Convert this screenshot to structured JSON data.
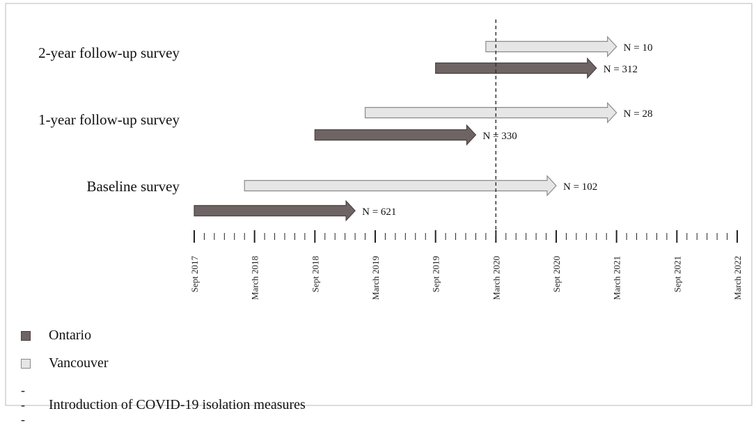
{
  "chart_data": {
    "type": "timeline",
    "x_ticks": [
      "Sept 2017",
      "March 2018",
      "Sept 2018",
      "March 2019",
      "Sept 2019",
      "March 2020",
      "Sept 2020",
      "March 2021",
      "Sept 2021",
      "March 2022"
    ],
    "x_unit": "month",
    "x_range": [
      "2017-09",
      "2022-03"
    ],
    "marker": {
      "date": "2020-03",
      "style": "dashed",
      "legend": "Introduction of COVID-19 isolation measures"
    },
    "rows": [
      {
        "label": "2-year follow-up survey",
        "bars": [
          {
            "series": "Vancouver",
            "start": "2020-02",
            "end": "2021-03",
            "n_label": "N = 10"
          },
          {
            "series": "Ontario",
            "start": "2019-09",
            "end": "2021-01",
            "n_label": "N = 312"
          }
        ]
      },
      {
        "label": "1-year follow-up survey",
        "bars": [
          {
            "series": "Vancouver",
            "start": "2019-02",
            "end": "2021-03",
            "n_label": "N = 28"
          },
          {
            "series": "Ontario",
            "start": "2018-09",
            "end": "2020-01",
            "n_label": "N = 330"
          }
        ]
      },
      {
        "label": "Baseline survey",
        "bars": [
          {
            "series": "Vancouver",
            "start": "2018-02",
            "end": "2020-09",
            "n_label": "N = 102"
          },
          {
            "series": "Ontario",
            "start": "2017-09",
            "end": "2019-01",
            "n_label": "N = 621"
          }
        ]
      }
    ],
    "legend": [
      {
        "name": "Ontario",
        "color": "#6e6463",
        "border": "#4a4242"
      },
      {
        "name": "Vancouver",
        "color": "#e6e6e6",
        "border": "#8a8a8a"
      }
    ]
  }
}
